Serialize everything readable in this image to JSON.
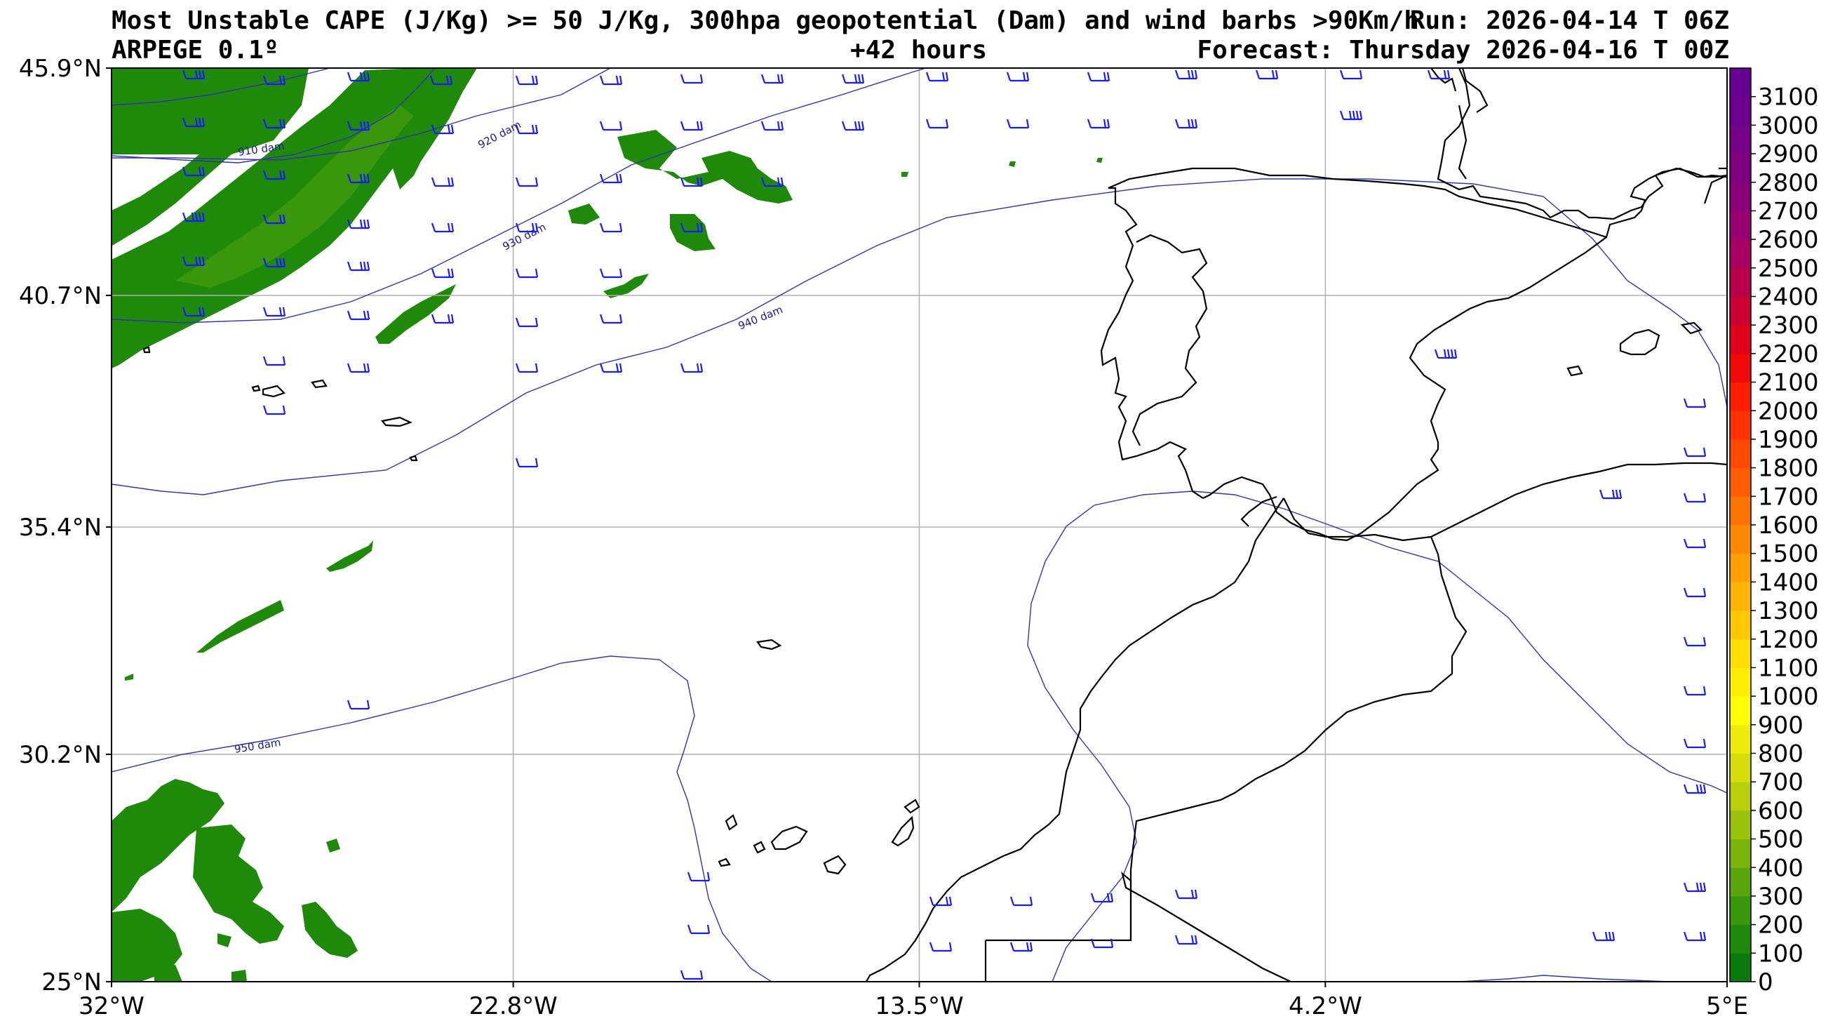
{
  "header": {
    "title_line1": "Most Unstable CAPE (J/Kg) >= 50 J/Kg, 300hpa geopotential (Dam) and wind barbs >90Km/h",
    "run": "Run: 2026-04-14 T 06Z",
    "model": "ARPEGE 0.1º",
    "lead": "+42 hours",
    "forecast": "Forecast: Thursday 2026-04-16 T 00Z"
  },
  "chart_data": {
    "type": "heatmap",
    "title": "Most Unstable CAPE (J/Kg) >= 50 J/Kg, 300hpa geopotential (Dam) and wind barbs >90Km/h",
    "xlim": [
      -32,
      5
    ],
    "ylim": [
      25,
      45.9
    ],
    "x_ticks": [
      {
        "value": -32,
        "label": "32°W"
      },
      {
        "value": -22.8,
        "label": "22.8°W"
      },
      {
        "value": -13.5,
        "label": "13.5°W"
      },
      {
        "value": -4.2,
        "label": "4.2°W"
      },
      {
        "value": 5,
        "label": "5°E"
      }
    ],
    "y_ticks": [
      {
        "value": 45.9,
        "label": "45.9°N"
      },
      {
        "value": 40.7,
        "label": "40.7°N"
      },
      {
        "value": 35.4,
        "label": "35.4°N"
      },
      {
        "value": 30.2,
        "label": "30.2°N"
      },
      {
        "value": 25,
        "label": "25°N"
      }
    ],
    "grid": true,
    "colorbar": {
      "position": "right",
      "min": 0,
      "max": 3200,
      "ticks": [
        "0",
        "100",
        "200",
        "300",
        "400",
        "500",
        "600",
        "700",
        "800",
        "900",
        "1000",
        "1100",
        "1200",
        "1300",
        "1400",
        "1500",
        "1600",
        "1700",
        "1800",
        "1900",
        "2000",
        "2100",
        "2200",
        "2300",
        "2400",
        "2500",
        "2600",
        "2700",
        "2800",
        "2900",
        "3000",
        "3100"
      ],
      "colors": [
        "#0a7a0a",
        "#1f8a0a",
        "#3a960a",
        "#58a60a",
        "#7ab40a",
        "#99c20a",
        "#b8d00a",
        "#d6dd0a",
        "#eeea0a",
        "#ffff00",
        "#ffee00",
        "#ffdd00",
        "#ffc800",
        "#ffb400",
        "#ff9f00",
        "#ff8a00",
        "#ff7400",
        "#ff5e00",
        "#ff4800",
        "#ff3200",
        "#ff1e00",
        "#f00a0a",
        "#e0001a",
        "#cc0030",
        "#b8004a",
        "#a80060",
        "#980070",
        "#8a0078",
        "#7e0080",
        "#760088",
        "#6e0090",
        "#660090"
      ]
    },
    "contours": [
      {
        "label": "910 dam",
        "value": 910
      },
      {
        "label": "920 dam",
        "value": 920
      },
      {
        "label": "930 dam",
        "value": 930
      },
      {
        "label": "940 dam",
        "value": 940
      },
      {
        "label": "950 dam",
        "value": 950
      }
    ],
    "cape_regions": [
      {
        "name": "NW band",
        "lon_range": [
          -32,
          -23
        ],
        "lat_range": [
          40,
          45.9
        ],
        "value_approx": 200
      },
      {
        "name": "central W patches",
        "lon_range": [
          -23,
          -18
        ],
        "lat_range": [
          42,
          44.8
        ],
        "value_approx": 100
      },
      {
        "name": "mid W streaks",
        "lon_range": [
          -30,
          -24.5
        ],
        "lat_range": [
          32.5,
          36
        ],
        "value_approx": 100
      },
      {
        "name": "SW cluster",
        "lon_range": [
          -32,
          -26
        ],
        "lat_range": [
          25,
          29.3
        ],
        "value_approx": 150
      }
    ]
  }
}
